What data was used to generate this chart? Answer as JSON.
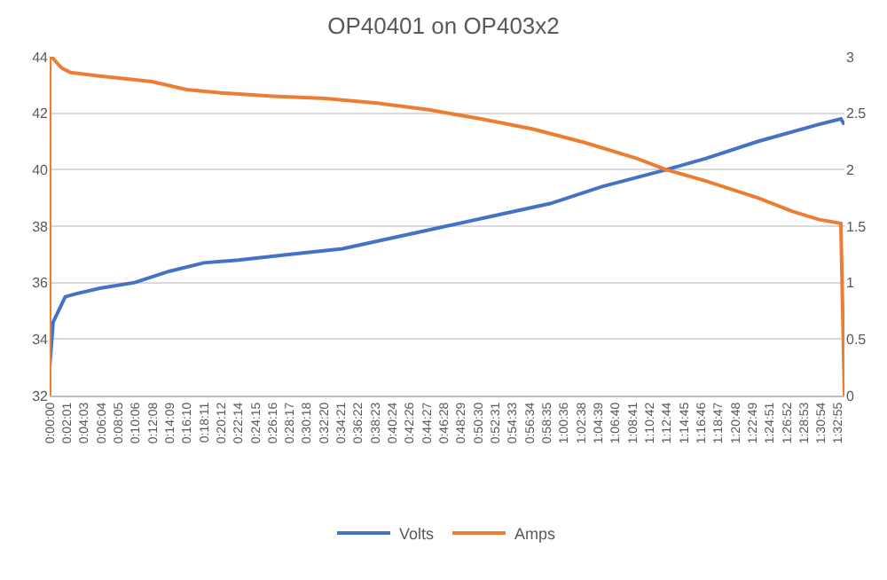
{
  "chart_data": {
    "type": "line",
    "title": "OP40401 on OP403x2",
    "xlim": [
      0,
      1.561
    ],
    "xticks": [
      {
        "value": 0,
        "label": "0:00:00"
      },
      {
        "value": 0.0336,
        "label": "0:02:01"
      },
      {
        "value": 0.0675,
        "label": "0:04:03"
      },
      {
        "value": 0.1011,
        "label": "0:06:04"
      },
      {
        "value": 0.1347,
        "label": "0:08:05"
      },
      {
        "value": 0.1683,
        "label": "0:10:06"
      },
      {
        "value": 0.2022,
        "label": "0:12:08"
      },
      {
        "value": 0.2358,
        "label": "0:14:09"
      },
      {
        "value": 0.2694,
        "label": "0:16:10"
      },
      {
        "value": 0.3031,
        "label": "0:18:11"
      },
      {
        "value": 0.3367,
        "label": "0:20:12"
      },
      {
        "value": 0.3706,
        "label": "0:22:14"
      },
      {
        "value": 0.4042,
        "label": "0:24:15"
      },
      {
        "value": 0.4378,
        "label": "0:26:16"
      },
      {
        "value": 0.4714,
        "label": "0:28:17"
      },
      {
        "value": 0.505,
        "label": "0:30:18"
      },
      {
        "value": 0.5389,
        "label": "0:32:20"
      },
      {
        "value": 0.5725,
        "label": "0:34:21"
      },
      {
        "value": 0.6061,
        "label": "0:36:22"
      },
      {
        "value": 0.6397,
        "label": "0:38:23"
      },
      {
        "value": 0.6733,
        "label": "0:40:24"
      },
      {
        "value": 0.7072,
        "label": "0:42:26"
      },
      {
        "value": 0.7408,
        "label": "0:44:27"
      },
      {
        "value": 0.7744,
        "label": "0:46:28"
      },
      {
        "value": 0.8081,
        "label": "0:48:29"
      },
      {
        "value": 0.8417,
        "label": "0:50:30"
      },
      {
        "value": 0.8753,
        "label": "0:52:31"
      },
      {
        "value": 0.9092,
        "label": "0:54:33"
      },
      {
        "value": 0.9428,
        "label": "0:56:34"
      },
      {
        "value": 0.9764,
        "label": "0:58:35"
      },
      {
        "value": 1.01,
        "label": "1:00:36"
      },
      {
        "value": 1.0439,
        "label": "1:02:38"
      },
      {
        "value": 1.0775,
        "label": "1:04:39"
      },
      {
        "value": 1.1111,
        "label": "1:06:40"
      },
      {
        "value": 1.1447,
        "label": "1:08:41"
      },
      {
        "value": 1.1783,
        "label": "1:10:42"
      },
      {
        "value": 1.2122,
        "label": "1:12:44"
      },
      {
        "value": 1.2458,
        "label": "1:14:45"
      },
      {
        "value": 1.2794,
        "label": "1:16:46"
      },
      {
        "value": 1.3131,
        "label": "1:18:47"
      },
      {
        "value": 1.3467,
        "label": "1:20:48"
      },
      {
        "value": 1.3803,
        "label": "1:22:49"
      },
      {
        "value": 1.4142,
        "label": "1:24:51"
      },
      {
        "value": 1.4478,
        "label": "1:26:52"
      },
      {
        "value": 1.4814,
        "label": "1:28:53"
      },
      {
        "value": 1.515,
        "label": "1:30:54"
      },
      {
        "value": 1.5486,
        "label": "1:32:55"
      }
    ],
    "ylim": [
      32,
      44
    ],
    "yticks": [
      32,
      34,
      36,
      38,
      40,
      42,
      44
    ],
    "y2lim": [
      0,
      3
    ],
    "y2ticks": [
      0,
      0.5,
      1,
      1.5,
      2,
      2.5,
      3
    ],
    "grid": "y",
    "legend": "bottom",
    "line_style": "solid",
    "marker": "none",
    "series": [
      {
        "name": "Volts",
        "color": "#4472c4",
        "x": [
          0,
          0.0068,
          0.0306,
          0.051,
          0.0986,
          0.1667,
          0.2347,
          0.3027,
          0.3707,
          0.4728,
          0.5748,
          0.6769,
          0.7789,
          0.881,
          0.983,
          1.085,
          1.211,
          1.289,
          1.391,
          1.51,
          1.554,
          1.561
        ],
        "values": [
          33.0,
          34.6,
          35.5,
          35.6,
          35.8,
          36.0,
          36.4,
          36.7,
          36.8,
          37.0,
          37.2,
          37.6,
          38.0,
          38.4,
          38.8,
          39.4,
          40.0,
          40.4,
          41.0,
          41.6,
          41.8,
          41.6
        ]
      },
      {
        "name": "Amps",
        "color": "#ed7d31",
        "axis": "y2",
        "x": [
          0,
          0.0001,
          0.0034,
          0.0238,
          0.0408,
          0.0986,
          0.2007,
          0.2687,
          0.3367,
          0.4388,
          0.5408,
          0.6429,
          0.7449,
          0.8469,
          0.949,
          1.051,
          1.153,
          1.211,
          1.289,
          1.391,
          1.459,
          1.51,
          1.554,
          1.561
        ],
        "values": [
          0,
          3.0,
          3.0,
          2.9,
          2.86,
          2.83,
          2.78,
          2.71,
          2.68,
          2.65,
          2.63,
          2.59,
          2.53,
          2.45,
          2.36,
          2.24,
          2.1,
          2.0,
          1.9,
          1.75,
          1.63,
          1.56,
          1.525,
          0
        ]
      }
    ]
  }
}
